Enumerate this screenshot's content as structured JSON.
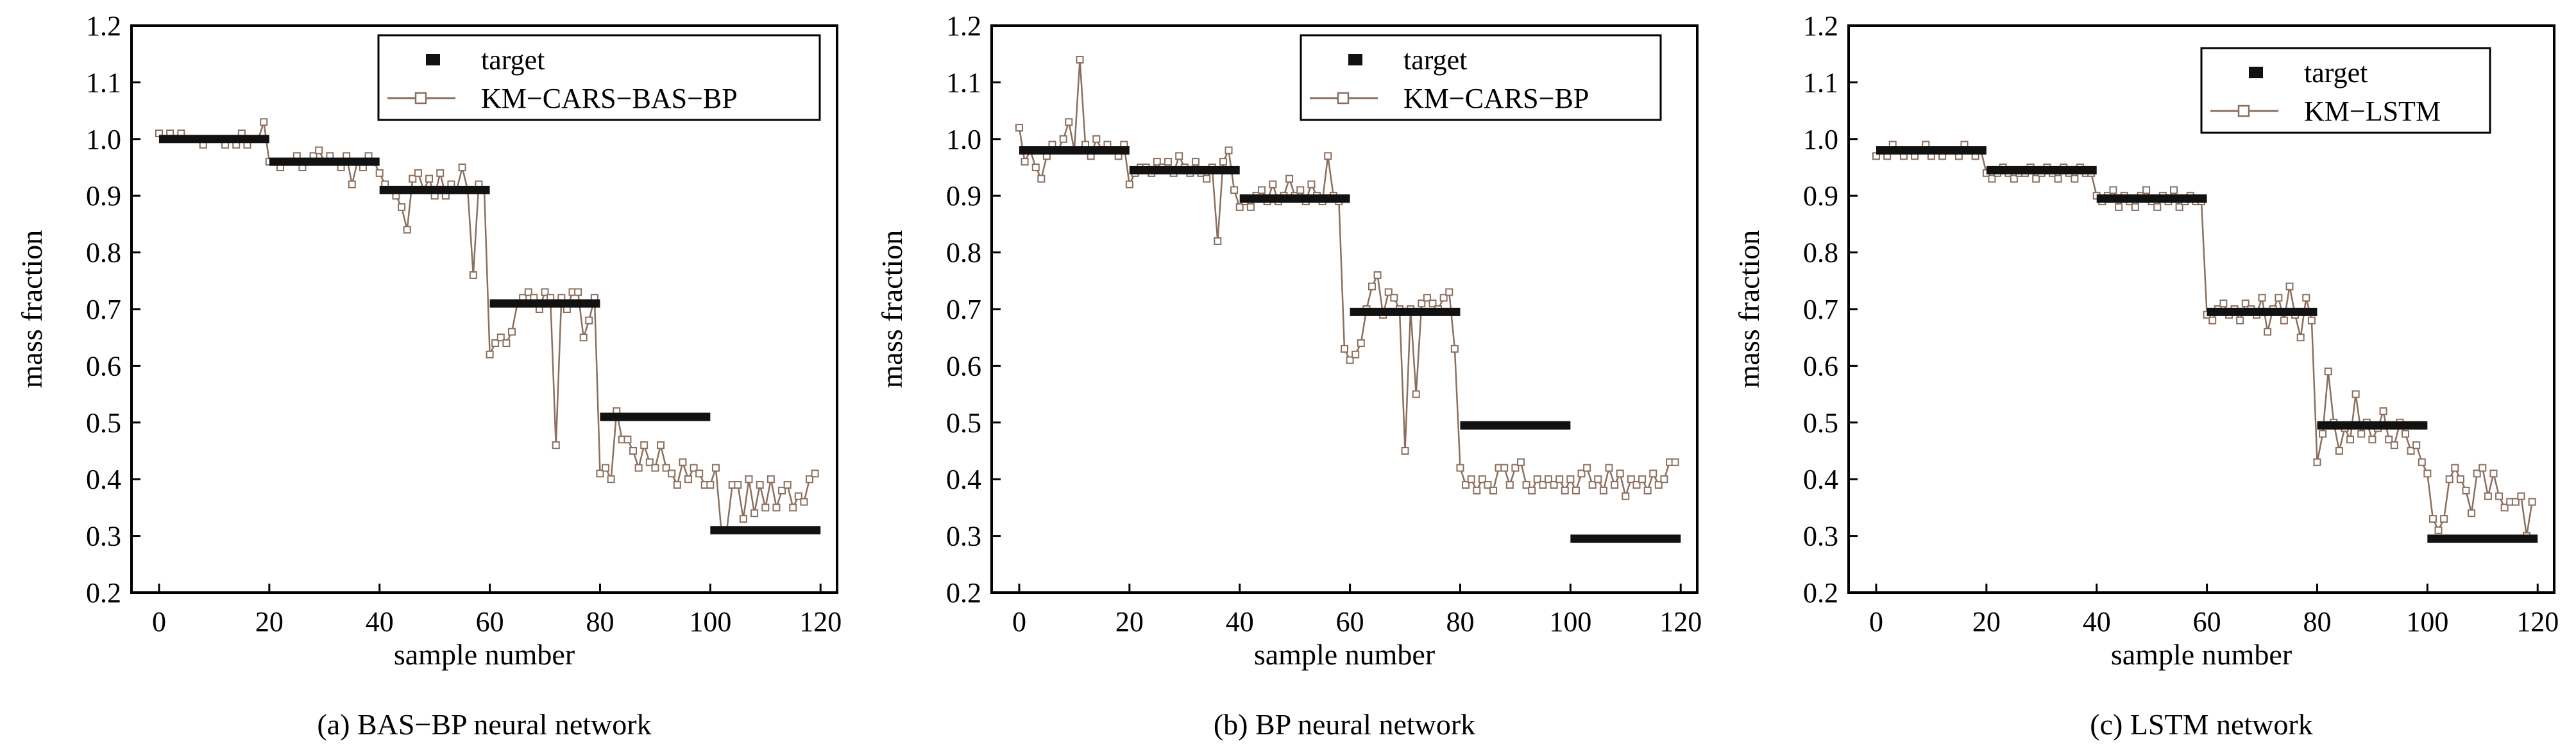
{
  "chart_data": [
    {
      "type": "line",
      "caption": "(a) BAS−BP neural network",
      "xlabel": "sample number",
      "ylabel": "mass fraction",
      "xlim": [
        -5,
        123
      ],
      "ylim": [
        0.2,
        1.2
      ],
      "xticks": [
        0,
        20,
        40,
        60,
        80,
        100,
        120
      ],
      "yticks": [
        0.2,
        0.3,
        0.4,
        0.5,
        0.6,
        0.7,
        0.8,
        0.9,
        1.0,
        1.1,
        1.2
      ],
      "ytick_labels": [
        "0.2",
        "0.3",
        "0.4",
        "0.5",
        "0.6",
        "0.7",
        "0.8",
        "0.9",
        "1.0",
        "1.1",
        "1.2"
      ],
      "grid": false,
      "legend_position": "top-right",
      "series": [
        {
          "name": "target",
          "style": "thick-segments",
          "color": "#111111",
          "segments": [
            {
              "x_start": 0,
              "x_end": 20,
              "y": 1.0
            },
            {
              "x_start": 20,
              "x_end": 40,
              "y": 0.96
            },
            {
              "x_start": 40,
              "x_end": 60,
              "y": 0.91
            },
            {
              "x_start": 60,
              "x_end": 80,
              "y": 0.71
            },
            {
              "x_start": 80,
              "x_end": 100,
              "y": 0.51
            },
            {
              "x_start": 100,
              "x_end": 120,
              "y": 0.31
            }
          ]
        },
        {
          "name": "KM−CARS−BAS−BP",
          "style": "line-open-square-markers",
          "color": "#8a6f5e",
          "x": [
            0,
            1,
            2,
            3,
            4,
            5,
            6,
            7,
            8,
            9,
            10,
            11,
            12,
            13,
            14,
            15,
            16,
            17,
            18,
            19,
            20,
            21,
            22,
            23,
            24,
            25,
            26,
            27,
            28,
            29,
            30,
            31,
            32,
            33,
            34,
            35,
            36,
            37,
            38,
            39,
            40,
            41,
            42,
            43,
            44,
            45,
            46,
            47,
            48,
            49,
            50,
            51,
            52,
            53,
            54,
            55,
            56,
            57,
            58,
            59,
            60,
            61,
            62,
            63,
            64,
            65,
            66,
            67,
            68,
            69,
            70,
            71,
            72,
            73,
            74,
            75,
            76,
            77,
            78,
            79,
            80,
            81,
            82,
            83,
            84,
            85,
            86,
            87,
            88,
            89,
            90,
            91,
            92,
            93,
            94,
            95,
            96,
            97,
            98,
            99,
            100,
            101,
            102,
            103,
            104,
            105,
            106,
            107,
            108,
            109,
            110,
            111,
            112,
            113,
            114,
            115,
            116,
            117,
            118,
            119
          ],
          "y": [
            1.01,
            1.0,
            1.01,
            1.0,
            1.01,
            1.0,
            1.0,
            1.0,
            0.99,
            1.0,
            1.0,
            1.0,
            0.99,
            1.0,
            0.99,
            1.01,
            0.99,
            1.0,
            1.0,
            1.03,
            0.96,
            0.96,
            0.95,
            0.96,
            0.96,
            0.97,
            0.95,
            0.96,
            0.97,
            0.98,
            0.96,
            0.97,
            0.96,
            0.95,
            0.97,
            0.92,
            0.96,
            0.95,
            0.97,
            0.96,
            0.94,
            0.92,
            0.91,
            0.9,
            0.88,
            0.84,
            0.93,
            0.94,
            0.91,
            0.93,
            0.9,
            0.94,
            0.9,
            0.92,
            0.91,
            0.95,
            0.91,
            0.76,
            0.92,
            0.91,
            0.62,
            0.64,
            0.65,
            0.64,
            0.66,
            0.71,
            0.72,
            0.73,
            0.72,
            0.7,
            0.73,
            0.72,
            0.46,
            0.72,
            0.7,
            0.73,
            0.73,
            0.65,
            0.68,
            0.72,
            0.41,
            0.42,
            0.4,
            0.52,
            0.47,
            0.47,
            0.45,
            0.42,
            0.46,
            0.43,
            0.42,
            0.46,
            0.42,
            0.41,
            0.39,
            0.43,
            0.4,
            0.42,
            0.41,
            0.39,
            0.39,
            0.42,
            0.31,
            0.31,
            0.39,
            0.39,
            0.33,
            0.4,
            0.34,
            0.39,
            0.35,
            0.4,
            0.35,
            0.38,
            0.39,
            0.35,
            0.37,
            0.36,
            0.4,
            0.41
          ]
        }
      ]
    },
    {
      "type": "line",
      "caption": "(b) BP neural network",
      "xlabel": "sample number",
      "ylabel": "mass fraction",
      "xlim": [
        -5,
        123
      ],
      "ylim": [
        0.2,
        1.2
      ],
      "xticks": [
        0,
        20,
        40,
        60,
        80,
        100,
        120
      ],
      "yticks": [
        0.2,
        0.3,
        0.4,
        0.5,
        0.6,
        0.7,
        0.8,
        0.9,
        1.0,
        1.1,
        1.2
      ],
      "ytick_labels": [
        "0.2",
        "0.3",
        "0.4",
        "0.5",
        "0.6",
        "0.7",
        "0.8",
        "0.9",
        "1.0",
        "1.1",
        "1.2"
      ],
      "grid": false,
      "legend_position": "top-right",
      "series": [
        {
          "name": "target",
          "style": "thick-segments",
          "color": "#111111",
          "segments": [
            {
              "x_start": 0,
              "x_end": 20,
              "y": 0.98
            },
            {
              "x_start": 20,
              "x_end": 40,
              "y": 0.945
            },
            {
              "x_start": 40,
              "x_end": 60,
              "y": 0.895
            },
            {
              "x_start": 60,
              "x_end": 80,
              "y": 0.695
            },
            {
              "x_start": 80,
              "x_end": 100,
              "y": 0.495
            },
            {
              "x_start": 100,
              "x_end": 120,
              "y": 0.295
            }
          ]
        },
        {
          "name": "KM−CARS−BP",
          "style": "line-open-square-markers",
          "color": "#8a6f5e",
          "x": [
            0,
            1,
            2,
            3,
            4,
            5,
            6,
            7,
            8,
            9,
            10,
            11,
            12,
            13,
            14,
            15,
            16,
            17,
            18,
            19,
            20,
            21,
            22,
            23,
            24,
            25,
            26,
            27,
            28,
            29,
            30,
            31,
            32,
            33,
            34,
            35,
            36,
            37,
            38,
            39,
            40,
            41,
            42,
            43,
            44,
            45,
            46,
            47,
            48,
            49,
            50,
            51,
            52,
            53,
            54,
            55,
            56,
            57,
            58,
            59,
            60,
            61,
            62,
            63,
            64,
            65,
            66,
            67,
            68,
            69,
            70,
            71,
            72,
            73,
            74,
            75,
            76,
            77,
            78,
            79,
            80,
            81,
            82,
            83,
            84,
            85,
            86,
            87,
            88,
            89,
            90,
            91,
            92,
            93,
            94,
            95,
            96,
            97,
            98,
            99,
            100,
            101,
            102,
            103,
            104,
            105,
            106,
            107,
            108,
            109,
            110,
            111,
            112,
            113,
            114,
            115,
            116,
            117,
            118,
            119
          ],
          "y": [
            1.02,
            0.96,
            0.98,
            0.95,
            0.93,
            0.97,
            0.99,
            0.98,
            1.0,
            1.03,
            0.98,
            1.14,
            0.99,
            0.97,
            1.0,
            0.98,
            0.99,
            0.98,
            0.97,
            0.99,
            0.92,
            0.94,
            0.95,
            0.95,
            0.94,
            0.96,
            0.95,
            0.96,
            0.94,
            0.97,
            0.95,
            0.94,
            0.96,
            0.94,
            0.93,
            0.95,
            0.82,
            0.96,
            0.98,
            0.91,
            0.88,
            0.89,
            0.88,
            0.9,
            0.91,
            0.89,
            0.92,
            0.89,
            0.9,
            0.93,
            0.9,
            0.91,
            0.89,
            0.92,
            0.9,
            0.89,
            0.97,
            0.9,
            0.89,
            0.63,
            0.61,
            0.62,
            0.64,
            0.7,
            0.74,
            0.76,
            0.69,
            0.73,
            0.72,
            0.7,
            0.45,
            0.7,
            0.55,
            0.71,
            0.72,
            0.71,
            0.7,
            0.72,
            0.73,
            0.63,
            0.42,
            0.39,
            0.4,
            0.38,
            0.4,
            0.39,
            0.38,
            0.42,
            0.42,
            0.39,
            0.42,
            0.43,
            0.39,
            0.38,
            0.4,
            0.39,
            0.4,
            0.39,
            0.4,
            0.38,
            0.4,
            0.38,
            0.41,
            0.42,
            0.39,
            0.4,
            0.38,
            0.42,
            0.39,
            0.41,
            0.37,
            0.4,
            0.39,
            0.4,
            0.38,
            0.41,
            0.39,
            0.4,
            0.43,
            0.43
          ]
        }
      ]
    },
    {
      "type": "line",
      "caption": "(c) LSTM network",
      "xlabel": "sample number",
      "ylabel": "mass fraction",
      "xlim": [
        -5,
        123
      ],
      "ylim": [
        0.2,
        1.2
      ],
      "xticks": [
        0,
        20,
        40,
        60,
        80,
        100,
        120
      ],
      "yticks": [
        0.2,
        0.3,
        0.4,
        0.5,
        0.6,
        0.7,
        0.8,
        0.9,
        1.0,
        1.1,
        1.2
      ],
      "ytick_labels": [
        "0.2",
        "0.3",
        "0.4",
        "0.5",
        "0.6",
        "0.7",
        "0.8",
        "0.9",
        "1.0",
        "1.1",
        "1.2"
      ],
      "grid": false,
      "legend_position": "top-right",
      "series": [
        {
          "name": "target",
          "style": "thick-segments",
          "color": "#111111",
          "segments": [
            {
              "x_start": 0,
              "x_end": 20,
              "y": 0.98
            },
            {
              "x_start": 20,
              "x_end": 40,
              "y": 0.945
            },
            {
              "x_start": 40,
              "x_end": 60,
              "y": 0.895
            },
            {
              "x_start": 60,
              "x_end": 80,
              "y": 0.695
            },
            {
              "x_start": 80,
              "x_end": 100,
              "y": 0.495
            },
            {
              "x_start": 100,
              "x_end": 120,
              "y": 0.295
            }
          ]
        },
        {
          "name": "KM−LSTM",
          "style": "line-open-square-markers",
          "color": "#8a6f5e",
          "x": [
            0,
            1,
            2,
            3,
            4,
            5,
            6,
            7,
            8,
            9,
            10,
            11,
            12,
            13,
            14,
            15,
            16,
            17,
            18,
            19,
            20,
            21,
            22,
            23,
            24,
            25,
            26,
            27,
            28,
            29,
            30,
            31,
            32,
            33,
            34,
            35,
            36,
            37,
            38,
            39,
            40,
            41,
            42,
            43,
            44,
            45,
            46,
            47,
            48,
            49,
            50,
            51,
            52,
            53,
            54,
            55,
            56,
            57,
            58,
            59,
            60,
            61,
            62,
            63,
            64,
            65,
            66,
            67,
            68,
            69,
            70,
            71,
            72,
            73,
            74,
            75,
            76,
            77,
            78,
            79,
            80,
            81,
            82,
            83,
            84,
            85,
            86,
            87,
            88,
            89,
            90,
            91,
            92,
            93,
            94,
            95,
            96,
            97,
            98,
            99,
            100,
            101,
            102,
            103,
            104,
            105,
            106,
            107,
            108,
            109,
            110,
            111,
            112,
            113,
            114,
            115,
            116,
            117,
            118,
            119
          ],
          "y": [
            0.97,
            0.98,
            0.97,
            0.99,
            0.98,
            0.97,
            0.98,
            0.97,
            0.98,
            0.99,
            0.97,
            0.98,
            0.97,
            0.98,
            0.98,
            0.97,
            0.99,
            0.98,
            0.97,
            0.98,
            0.94,
            0.93,
            0.94,
            0.95,
            0.94,
            0.93,
            0.94,
            0.94,
            0.95,
            0.93,
            0.94,
            0.95,
            0.94,
            0.93,
            0.95,
            0.94,
            0.93,
            0.95,
            0.94,
            0.94,
            0.9,
            0.89,
            0.9,
            0.91,
            0.88,
            0.9,
            0.89,
            0.88,
            0.9,
            0.91,
            0.89,
            0.88,
            0.9,
            0.89,
            0.91,
            0.88,
            0.89,
            0.9,
            0.89,
            0.89,
            0.69,
            0.68,
            0.7,
            0.71,
            0.69,
            0.7,
            0.68,
            0.71,
            0.7,
            0.69,
            0.72,
            0.66,
            0.7,
            0.72,
            0.68,
            0.74,
            0.69,
            0.65,
            0.72,
            0.68,
            0.43,
            0.48,
            0.59,
            0.5,
            0.45,
            0.49,
            0.47,
            0.55,
            0.48,
            0.5,
            0.47,
            0.49,
            0.52,
            0.47,
            0.46,
            0.5,
            0.48,
            0.45,
            0.46,
            0.43,
            0.41,
            0.33,
            0.31,
            0.33,
            0.4,
            0.42,
            0.4,
            0.38,
            0.34,
            0.41,
            0.42,
            0.37,
            0.41,
            0.37,
            0.35,
            0.36,
            0.36,
            0.37,
            0.3,
            0.36
          ]
        }
      ]
    }
  ]
}
